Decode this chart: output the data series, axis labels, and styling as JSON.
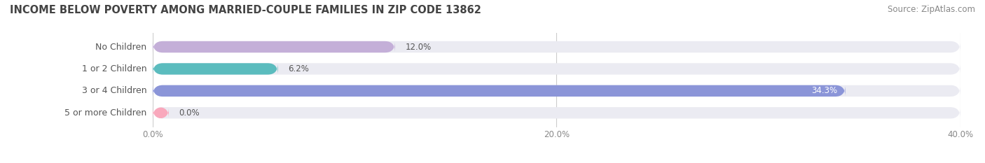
{
  "title": "INCOME BELOW POVERTY AMONG MARRIED-COUPLE FAMILIES IN ZIP CODE 13862",
  "source": "Source: ZipAtlas.com",
  "categories": [
    "No Children",
    "1 or 2 Children",
    "3 or 4 Children",
    "5 or more Children"
  ],
  "values": [
    12.0,
    6.2,
    34.3,
    0.0
  ],
  "bar_colors": [
    "#c4afd8",
    "#5bbcbe",
    "#8b95d8",
    "#f9a8bc"
  ],
  "bar_bg_color": "#ebebf2",
  "xlim": [
    0,
    40
  ],
  "xtick_values": [
    0.0,
    20.0,
    40.0
  ],
  "xtick_labels": [
    "0.0%",
    "20.0%",
    "40.0%"
  ],
  "title_fontsize": 10.5,
  "source_fontsize": 8.5,
  "label_fontsize": 9,
  "value_fontsize": 8.5,
  "bar_height": 0.52,
  "value_label_dark": "#555555",
  "value_label_light": "#ffffff",
  "background_color": "#ffffff",
  "label_pill_color": "#ffffff",
  "label_text_color": "#555555",
  "value_inside_threshold": 30.0
}
